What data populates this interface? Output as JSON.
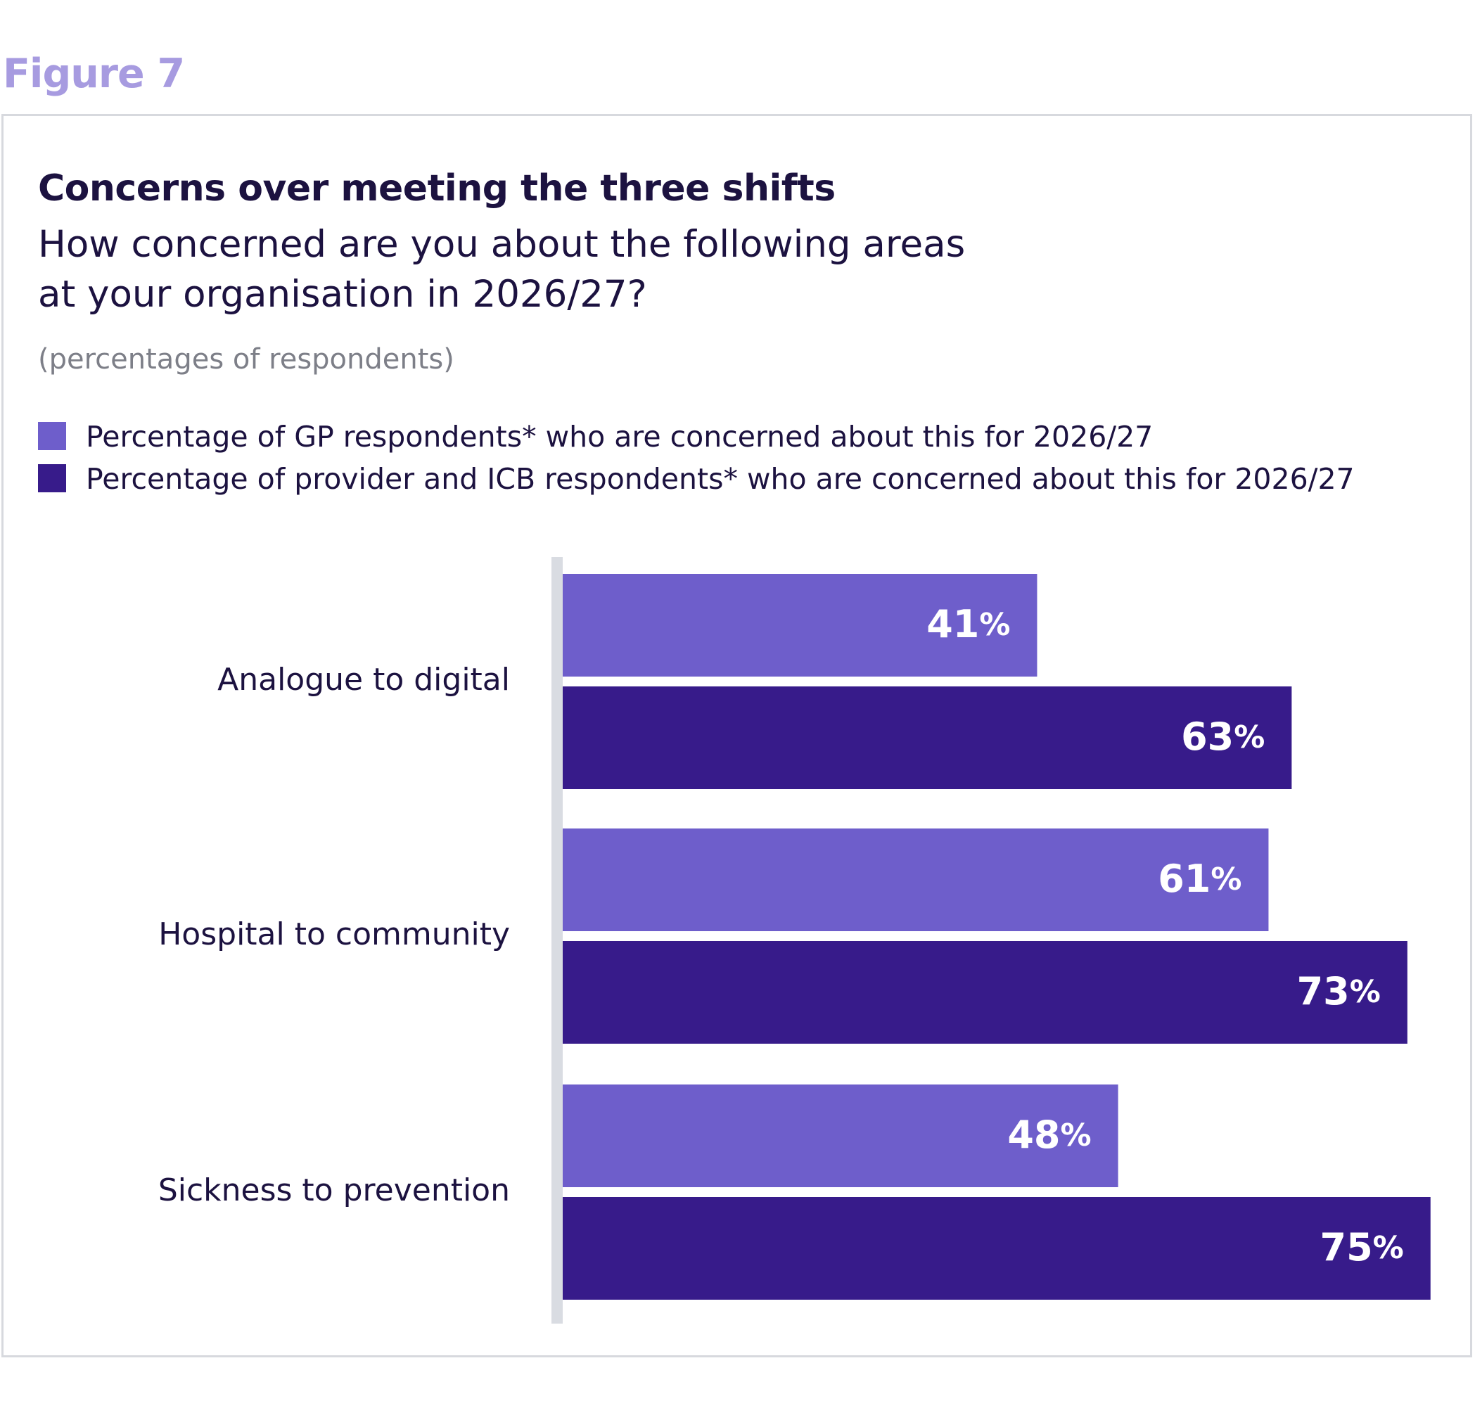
{
  "figure_label": "Figure 7",
  "chart_data": {
    "type": "bar",
    "orientation": "horizontal",
    "title": "Concerns over meeting the three shifts",
    "subtitle_lines": [
      "How concerned are you about the following areas",
      "at your organisation in 2026/27?"
    ],
    "note": "(percentages of respondents)",
    "categories": [
      "Analogue to digital",
      "Hospital to community",
      "Sickness to prevention"
    ],
    "series": [
      {
        "name": "Percentage of GP respondents* who are concerned about this for 2026/27",
        "color": "#6e5ecb",
        "values": [
          41,
          61,
          48
        ]
      },
      {
        "name": "Percentage of provider and ICB respondents* who are concerned about this for 2026/27",
        "color": "#371b8a",
        "values": [
          63,
          73,
          75
        ]
      }
    ],
    "value_suffix": "%",
    "xlim": [
      0,
      100
    ],
    "legend_position": "top-left",
    "grid": false
  }
}
